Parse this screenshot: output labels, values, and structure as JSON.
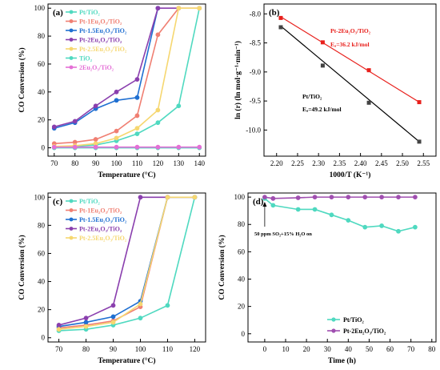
{
  "chart_data": [
    {
      "panel": "(a)",
      "type": "line",
      "xlabel": "Temperature (°C)",
      "ylabel": "CO Conversion (%)",
      "xlim": [
        67,
        143
      ],
      "ylim": [
        -6,
        103
      ],
      "xticks": [
        70,
        80,
        90,
        100,
        110,
        120,
        130,
        140
      ],
      "yticks": [
        0,
        20,
        40,
        60,
        80,
        100
      ],
      "grid": false,
      "legend": "top-left",
      "x": [
        70,
        80,
        90,
        100,
        110,
        120,
        130,
        140
      ],
      "series": [
        {
          "name": "Pt/TiO₂",
          "color": "#4fd9c0",
          "values": [
            0.5,
            1,
            2,
            5,
            10,
            18,
            30,
            100
          ]
        },
        {
          "name": "Pt-1Eu₂O₃/TiO₂",
          "color": "#f07f72",
          "values": [
            3,
            4,
            6,
            12,
            23,
            81,
            100,
            100
          ]
        },
        {
          "name": "Pt-1.5Eu₂O₃/TiO₂",
          "color": "#1f6fd1",
          "values": [
            14,
            18,
            28,
            34,
            36,
            100,
            null,
            null
          ]
        },
        {
          "name": "Pt-2Eu₂O₃/TiO₂",
          "color": "#8a3fae",
          "values": [
            15,
            19,
            30,
            40,
            49,
            100,
            100,
            null
          ]
        },
        {
          "name": "Pt-2.5Eu₂O₃/TiO₂",
          "color": "#f6d770",
          "values": [
            1,
            1.5,
            3,
            7,
            14,
            27,
            100,
            100
          ]
        },
        {
          "name": "TiO₂",
          "color": "#4fd9c0",
          "values": [
            0,
            0,
            0,
            0,
            0,
            0,
            0,
            0
          ]
        },
        {
          "name": "2Eu₂O₃/TiO₂",
          "color": "#e46fd6",
          "values": [
            0.5,
            0.5,
            0.5,
            0.5,
            0.5,
            0.5,
            0.5,
            0.5
          ]
        }
      ]
    },
    {
      "panel": "(b)",
      "type": "scatter",
      "xlabel": "1000/T (K⁻¹)",
      "ylabel": "ln (r) (ln mol·g⁻¹·min⁻¹)",
      "xlim": [
        2.17,
        2.58
      ],
      "ylim": [
        -10.45,
        -7.83
      ],
      "xticks": [
        2.2,
        2.25,
        2.3,
        2.35,
        2.4,
        2.45,
        2.5,
        2.55
      ],
      "xtick_labels": [
        "2.20",
        "2.25",
        "2.30",
        "2.35",
        "2.40",
        "2.45",
        "2.50",
        "2.55"
      ],
      "yticks": [
        -8.0,
        -8.5,
        -9.0,
        -9.5,
        -10.0
      ],
      "ytick_labels": [
        "-8.0",
        "-8.5",
        "-9.0",
        "-9.5",
        "-10.0"
      ],
      "grid": false,
      "series": [
        {
          "name": "Pt-2Eu₂O₃/TiO₂",
          "color": "#e8201c",
          "x": [
            2.21,
            2.31,
            2.42,
            2.54
          ],
          "values": [
            -8.07,
            -8.49,
            -8.97,
            -9.52
          ],
          "fit": [
            [
              2.21,
              -8.05
            ],
            [
              2.54,
              -9.52
            ]
          ]
        },
        {
          "name": "Pt/TiO₂",
          "color": "#000000",
          "x": [
            2.21,
            2.31,
            2.42,
            2.54
          ],
          "values": [
            -8.23,
            -8.89,
            -9.53,
            -10.2
          ],
          "fit": [
            [
              2.21,
              -8.21
            ],
            [
              2.54,
              -10.2
            ]
          ]
        }
      ],
      "annotations": {
        "red_name": "Pt-2Eu₂O₃/TiO₂",
        "red_ea": "Eₐ=36.2 kJ/mol",
        "black_name": "Pt/TiO₂",
        "black_ea": "Eₐ=49.2 kJ/mol"
      }
    },
    {
      "panel": "(c)",
      "type": "line",
      "xlabel": "Temperature (°C)",
      "ylabel": "CO Conversion (%)",
      "xlim": [
        66,
        124
      ],
      "ylim": [
        -3,
        103
      ],
      "xticks": [
        70,
        80,
        90,
        100,
        110,
        120
      ],
      "yticks": [
        0,
        20,
        40,
        60,
        80,
        100
      ],
      "grid": false,
      "legend": "top-left",
      "x": [
        70,
        80,
        90,
        100,
        110,
        120
      ],
      "series": [
        {
          "name": "Pt/TiO₂",
          "color": "#4fd9c0",
          "values": [
            5,
            6,
            9,
            14,
            23,
            100
          ]
        },
        {
          "name": "Pt-1Eu₂O₃/TiO₂",
          "color": "#f07f72",
          "values": [
            7,
            9,
            12,
            22,
            100,
            100
          ]
        },
        {
          "name": "Pt-1.5Eu₂O₃/TiO₂",
          "color": "#1f6fd1",
          "values": [
            8,
            11,
            15,
            26,
            100,
            100
          ]
        },
        {
          "name": "Pt-2Eu₂O₃/TiO₂",
          "color": "#8a3fae",
          "values": [
            9,
            14,
            23,
            100,
            100,
            null
          ]
        },
        {
          "name": "Pt-2.5Eu₂O₃/TiO₂",
          "color": "#f6d770",
          "values": [
            6,
            8,
            11,
            24,
            100,
            100
          ]
        }
      ]
    },
    {
      "panel": "(d)",
      "type": "line",
      "xlabel": "Time (h)",
      "ylabel": "CO Conversion (%)",
      "xlim": [
        -8,
        82
      ],
      "ylim": [
        -6,
        103
      ],
      "xticks": [
        0,
        10,
        20,
        30,
        40,
        50,
        60,
        70,
        80
      ],
      "yticks": [
        0,
        20,
        40,
        60,
        80,
        100
      ],
      "grid": false,
      "legend": "bottom-right",
      "series": [
        {
          "name": "Pt/TiO₂",
          "color": "#4fd9c0",
          "x": [
            0,
            4,
            16,
            24,
            32,
            40,
            48,
            56,
            64,
            72
          ],
          "values": [
            99,
            94,
            91,
            91,
            87,
            83,
            78,
            79,
            75,
            78
          ]
        },
        {
          "name": "Pt-2Eu₂O₃/TiO₂",
          "color": "#a04fb0",
          "x": [
            0,
            4,
            16,
            24,
            32,
            40,
            48,
            56,
            64,
            72
          ],
          "values": [
            100,
            99,
            99.5,
            100,
            100,
            100,
            100,
            100,
            100,
            100
          ]
        }
      ],
      "annotation": "50 ppm SO₂+15% H₂O on"
    }
  ]
}
